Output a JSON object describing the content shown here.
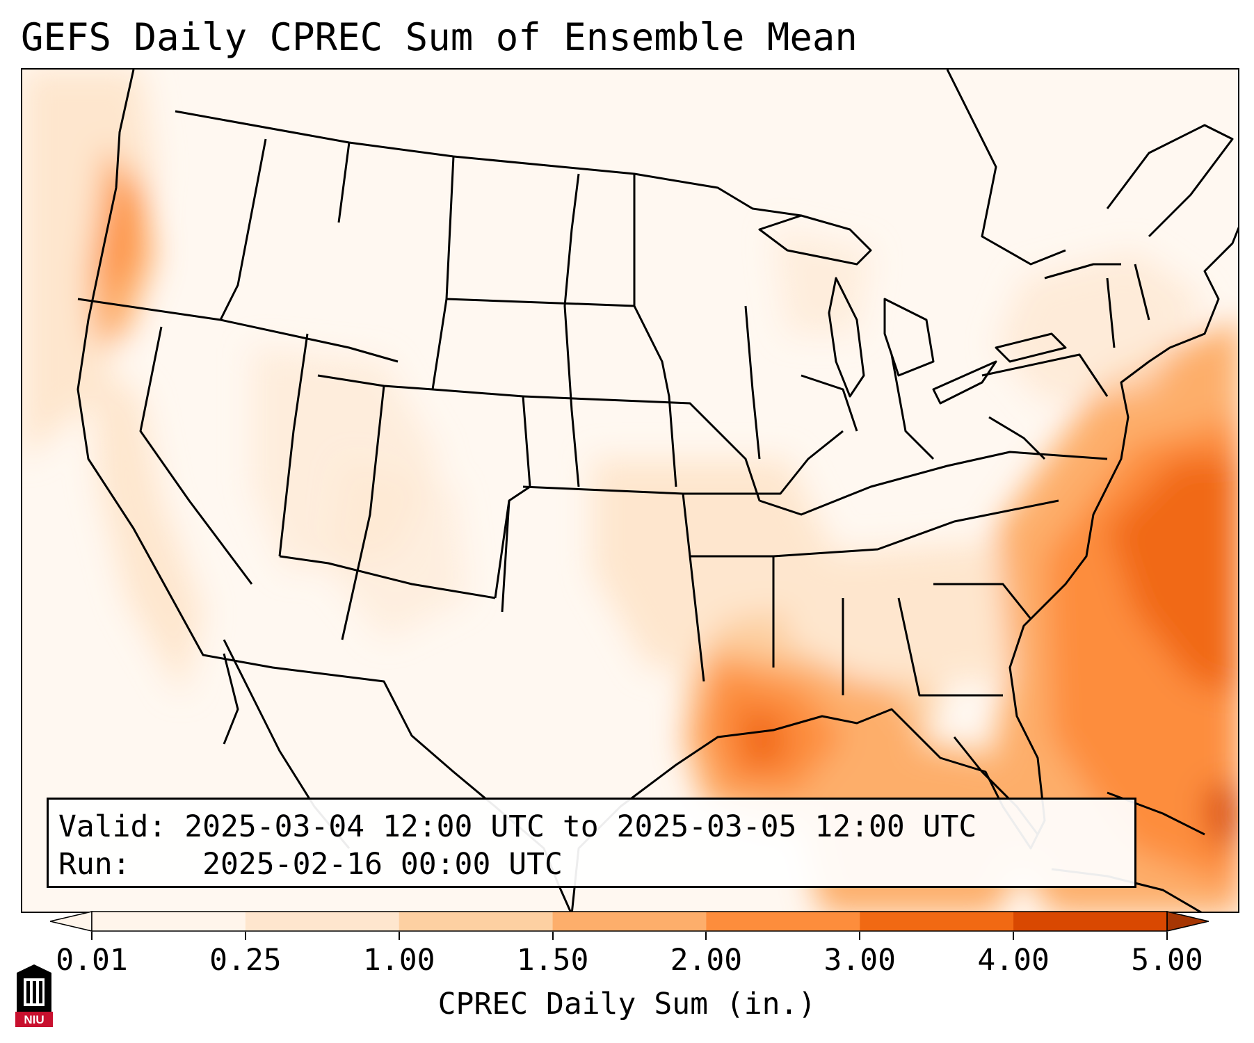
{
  "title": "GEFS Daily CPREC Sum of Ensemble Mean",
  "info": {
    "valid_label": "Valid:",
    "valid_value": "2025-03-04 12:00 UTC to 2025-03-05 12:00 UTC",
    "run_label": "Run:",
    "run_value": "2025-02-16 00:00 UTC"
  },
  "colorbar": {
    "label": "CPREC Daily Sum (in.)",
    "ticks": [
      "0.01",
      "0.25",
      "1.00",
      "1.50",
      "2.00",
      "3.00",
      "4.00",
      "5.00"
    ],
    "colors": [
      "#fff5eb",
      "#fee6ce",
      "#fdd0a2",
      "#fdae6b",
      "#fd8d3c",
      "#f16913",
      "#d94801",
      "#a63603"
    ],
    "extend": "both"
  },
  "logo": {
    "text": "NIU",
    "color": "#c8102e"
  },
  "map": {
    "projection": "Lambert Conformal",
    "region": "CONUS",
    "precip_maxima": [
      {
        "region": "Northern Gulf of Mexico / Gulf Coast",
        "approx_in": 2.0
      },
      {
        "region": "Western Atlantic off Southeast US",
        "approx_in": 3.0
      },
      {
        "region": "Pacific Northwest coast",
        "approx_in": 1.5
      }
    ]
  }
}
